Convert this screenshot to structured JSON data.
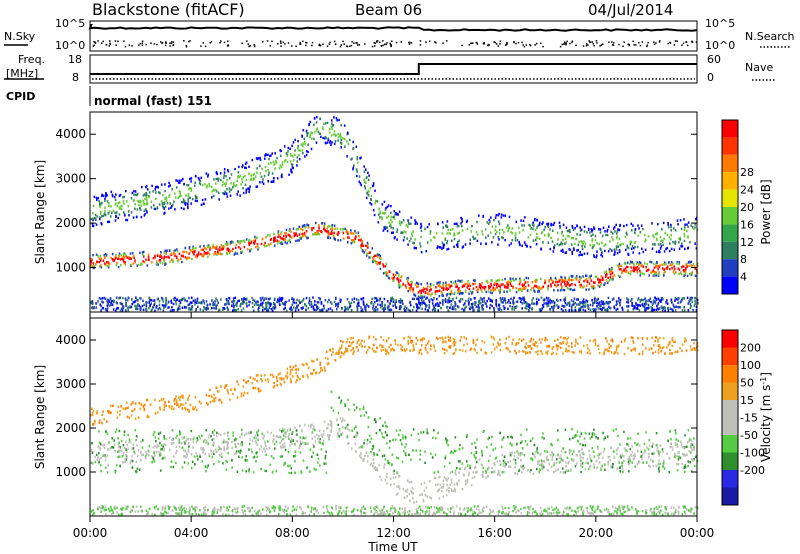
{
  "header": {
    "station": "Blackstone (fitACF)",
    "beam": "Beam 06",
    "date": "04/Jul/2014"
  },
  "panels": {
    "nsky_label": "N.Sky",
    "nsky_ticks": [
      "10^5",
      "10^0"
    ],
    "nsearch_label": "N.Search",
    "nsearch_ticks": [
      "10^5",
      "10^0"
    ],
    "freq_label": "Freq.",
    "freq_unit": "[MHz]",
    "freq_ticks": [
      "18",
      "8"
    ],
    "nave_label": "Nave",
    "nave_ticks": [
      "60",
      "0"
    ],
    "cpid_label": "CPID",
    "cpid_value": "normal (fast) 151"
  },
  "colors": {
    "power": [
      "#0000ff",
      "#1f3fbf",
      "#2e7f5f",
      "#33a64a",
      "#66cc33",
      "#e5e500",
      "#ffb000",
      "#ff7a00",
      "#ff3300",
      "#ff0000"
    ],
    "velocity": [
      "#1a1aa6",
      "#2a2ae6",
      "#2f8f2f",
      "#55cc44",
      "#c0c0bb",
      "#c0c0bb",
      "#f0a020",
      "#ff7f00",
      "#ff4000",
      "#ff0000"
    ]
  },
  "chart_data": [
    {
      "type": "heatmap",
      "name": "power",
      "ylabel": "Slant Range [km]",
      "yticks": [
        "1000",
        "2000",
        "3000",
        "4000"
      ],
      "ylim": [
        0,
        4500
      ],
      "colorbar_label": "Power [dB]",
      "colorbar_ticks": [
        "4",
        "8",
        "12",
        "16",
        "20",
        "24",
        "28"
      ]
    },
    {
      "type": "heatmap",
      "name": "velocity",
      "ylabel": "Slant Range [km]",
      "yticks": [
        "1000",
        "2000",
        "3000",
        "4000"
      ],
      "ylim": [
        0,
        4500
      ],
      "colorbar_label": "Velocity [m s",
      "colorbar_label_sup": "-1",
      "colorbar_label_end": "]",
      "colorbar_ticks": [
        "200",
        "100",
        "50",
        "15",
        "-15",
        "-50",
        "-100",
        "-200"
      ]
    }
  ],
  "xaxis": {
    "ticks": [
      "00:00",
      "04:00",
      "08:00",
      "12:00",
      "16:00",
      "20:00",
      "00:00"
    ],
    "label": "Time UT"
  },
  "scatter_bands": {
    "x_hours": [
      0,
      24
    ],
    "power_main_band_km": [
      [
        0,
        1150
      ],
      [
        3,
        1250
      ],
      [
        6,
        1500
      ],
      [
        9,
        1900
      ],
      [
        10.5,
        1700
      ],
      [
        12,
        800
      ],
      [
        13,
        500
      ],
      [
        15,
        600
      ],
      [
        18,
        650
      ],
      [
        20,
        700
      ],
      [
        21,
        1000
      ]
    ],
    "power_upper_band_km": [
      [
        0,
        2300
      ],
      [
        3,
        2600
      ],
      [
        6,
        3000
      ],
      [
        8,
        3500
      ],
      [
        9,
        4200
      ],
      [
        10,
        4000
      ],
      [
        11.5,
        2200
      ],
      [
        13,
        1700
      ],
      [
        16,
        1900
      ],
      [
        20,
        1600
      ],
      [
        24,
        1800
      ]
    ],
    "velocity_grey_band_km": [
      [
        0,
        1400
      ],
      [
        4,
        1600
      ],
      [
        8,
        1800
      ],
      [
        10,
        2000
      ],
      [
        12,
        800
      ],
      [
        13,
        500
      ],
      [
        16,
        1200
      ],
      [
        20,
        1300
      ],
      [
        24,
        1500
      ]
    ]
  }
}
